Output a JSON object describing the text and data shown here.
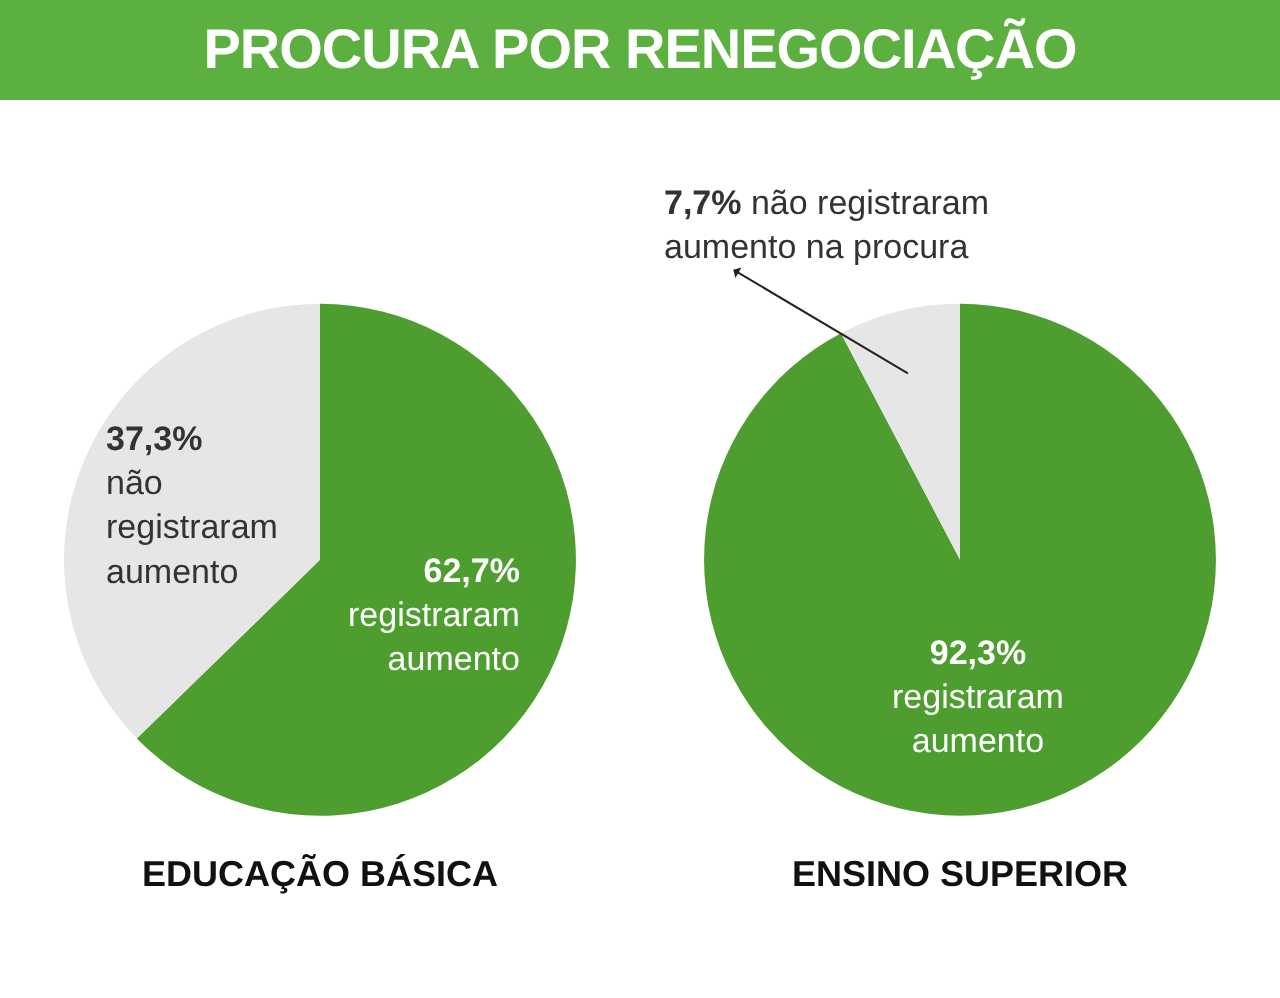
{
  "chart_data": [
    {
      "type": "pie",
      "title": "PROCURA POR RENEGOCIAÇÃO",
      "xlabel": "EDUCAÇÃO BÁSICA",
      "categories": [
        "registraram aumento",
        "não registraram aumento"
      ],
      "values": [
        62.7,
        37.3
      ],
      "value_labels": [
        "62,7%",
        "37,3%"
      ],
      "colors": [
        "#4d9e2e",
        "#e6e6e6"
      ]
    },
    {
      "type": "pie",
      "xlabel": "ENSINO SUPERIOR",
      "categories": [
        "registraram aumento",
        "não registraram aumento na procura"
      ],
      "values": [
        92.3,
        7.7
      ],
      "value_labels": [
        "92,3%",
        "7,7%"
      ],
      "colors": [
        "#4d9e2e",
        "#e6e6e6"
      ]
    }
  ]
}
